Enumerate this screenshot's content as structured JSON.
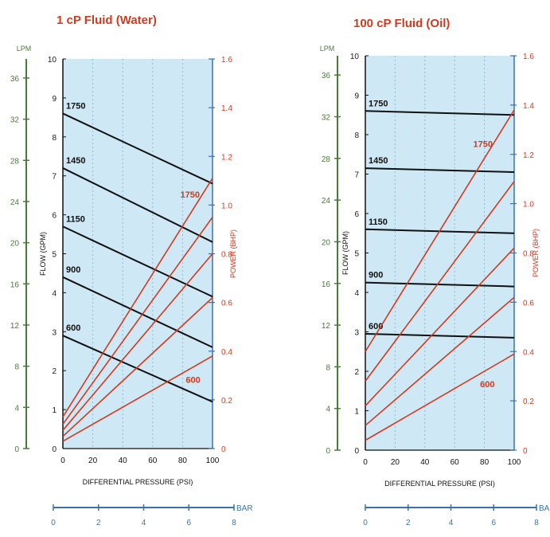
{
  "colors": {
    "lpm": "#4a7a3a",
    "gpm": "#1a1a1a",
    "power": "#d23a1e",
    "bar": "#3a73a8",
    "plot_bg": "#cfe8f5",
    "grid": "#8fbad3",
    "flow_line": "#111111",
    "power_line": "#d23a1e"
  },
  "chart_data": [
    {
      "type": "line",
      "title": "1 cP Fluid (Water)",
      "xlabel": "DIFFERENTIAL PRESSURE (PSI)",
      "ylabel": "FLOW (GPM)",
      "y2label": "POWER (BHP)",
      "lpm_label": "LPM",
      "bar_label": "BAR",
      "x": [
        0,
        100
      ],
      "xlim": [
        0,
        100
      ],
      "xticks": [
        "0",
        "20",
        "40",
        "60",
        "80",
        "100"
      ],
      "ylim": [
        0,
        10
      ],
      "yticks": [
        "0",
        "1",
        "2",
        "3",
        "4",
        "5",
        "6",
        "7",
        "8",
        "9",
        "10"
      ],
      "y2lim": [
        0,
        1.6
      ],
      "y2ticks": [
        "0",
        "0.2",
        "0.4",
        "0.6",
        "0.8",
        "1.0",
        "1.2",
        "1.4",
        "1.6"
      ],
      "lpm_ylim": [
        0,
        37.85
      ],
      "lpm_ticks": [
        "0",
        "4",
        "8",
        "12",
        "16",
        "20",
        "24",
        "28",
        "32",
        "36"
      ],
      "bar_ticks": [
        "0",
        "2",
        "4",
        "6",
        "8"
      ],
      "bar_label_positions": [
        0,
        29,
        58,
        87,
        116
      ],
      "grid": true,
      "flow_series": [
        {
          "name": "1750",
          "values": [
            8.6,
            6.8
          ]
        },
        {
          "name": "1450",
          "values": [
            7.2,
            5.3
          ]
        },
        {
          "name": "1150",
          "values": [
            5.7,
            3.9
          ]
        },
        {
          "name": "900",
          "values": [
            4.4,
            2.6
          ]
        },
        {
          "name": "600",
          "values": [
            2.9,
            1.2
          ]
        }
      ],
      "power_series": [
        {
          "name": "1750",
          "values": [
            0.13,
            1.11
          ]
        },
        {
          "name": "1450",
          "values": [
            0.1,
            0.95
          ]
        },
        {
          "name": "1150",
          "values": [
            0.075,
            0.8
          ]
        },
        {
          "name": "900",
          "values": [
            0.05,
            0.62
          ]
        },
        {
          "name": "600",
          "values": [
            0.03,
            0.38
          ]
        }
      ],
      "power_labels": [
        {
          "text": "1750",
          "x": 85,
          "y": 1.03
        },
        {
          "text": "600",
          "x": 87,
          "y": 0.27
        }
      ]
    },
    {
      "type": "line",
      "title": "100 cP Fluid (Oil)",
      "xlabel": "DIFFERENTIAL PRESSURE (PSI)",
      "ylabel": "FLOW (GPM)",
      "y2label": "POWER (BHP)",
      "lpm_label": "LPM",
      "bar_label": "BAI",
      "x": [
        0,
        100
      ],
      "xlim": [
        0,
        100
      ],
      "xticks": [
        "0",
        "20",
        "40",
        "60",
        "80",
        "100"
      ],
      "ylim": [
        0,
        10
      ],
      "yticks": [
        "0",
        "1",
        "2",
        "3",
        "4",
        "5",
        "6",
        "7",
        "8",
        "9",
        "10"
      ],
      "y2lim": [
        0,
        1.6
      ],
      "y2ticks": [
        "0",
        "0.2",
        "0.4",
        "0.6",
        "0.8",
        "1.0",
        "1.2",
        "1.4",
        "1.6"
      ],
      "lpm_ylim": [
        0,
        37.85
      ],
      "lpm_ticks": [
        "0",
        "4",
        "8",
        "12",
        "16",
        "20",
        "24",
        "28",
        "32",
        "36"
      ],
      "bar_ticks": [
        "0",
        "2",
        "4",
        "6",
        "8"
      ],
      "bar_label_positions": [
        0,
        29,
        58,
        87,
        116
      ],
      "grid": true,
      "flow_series": [
        {
          "name": "1750",
          "values": [
            8.6,
            8.5
          ]
        },
        {
          "name": "1450",
          "values": [
            7.15,
            7.05
          ]
        },
        {
          "name": "1150",
          "values": [
            5.6,
            5.5
          ]
        },
        {
          "name": "900",
          "values": [
            4.25,
            4.15
          ]
        },
        {
          "name": "600",
          "values": [
            2.95,
            2.85
          ]
        }
      ],
      "power_series": [
        {
          "name": "1750",
          "values": [
            0.4,
            1.38
          ]
        },
        {
          "name": "1450",
          "values": [
            0.28,
            1.09
          ]
        },
        {
          "name": "1150",
          "values": [
            0.18,
            0.82
          ]
        },
        {
          "name": "900",
          "values": [
            0.1,
            0.62
          ]
        },
        {
          "name": "600",
          "values": [
            0.04,
            0.39
          ]
        }
      ],
      "power_labels": [
        {
          "text": "1750",
          "x": 79,
          "y": 1.23
        },
        {
          "text": "600",
          "x": 82,
          "y": 0.255
        }
      ]
    }
  ]
}
